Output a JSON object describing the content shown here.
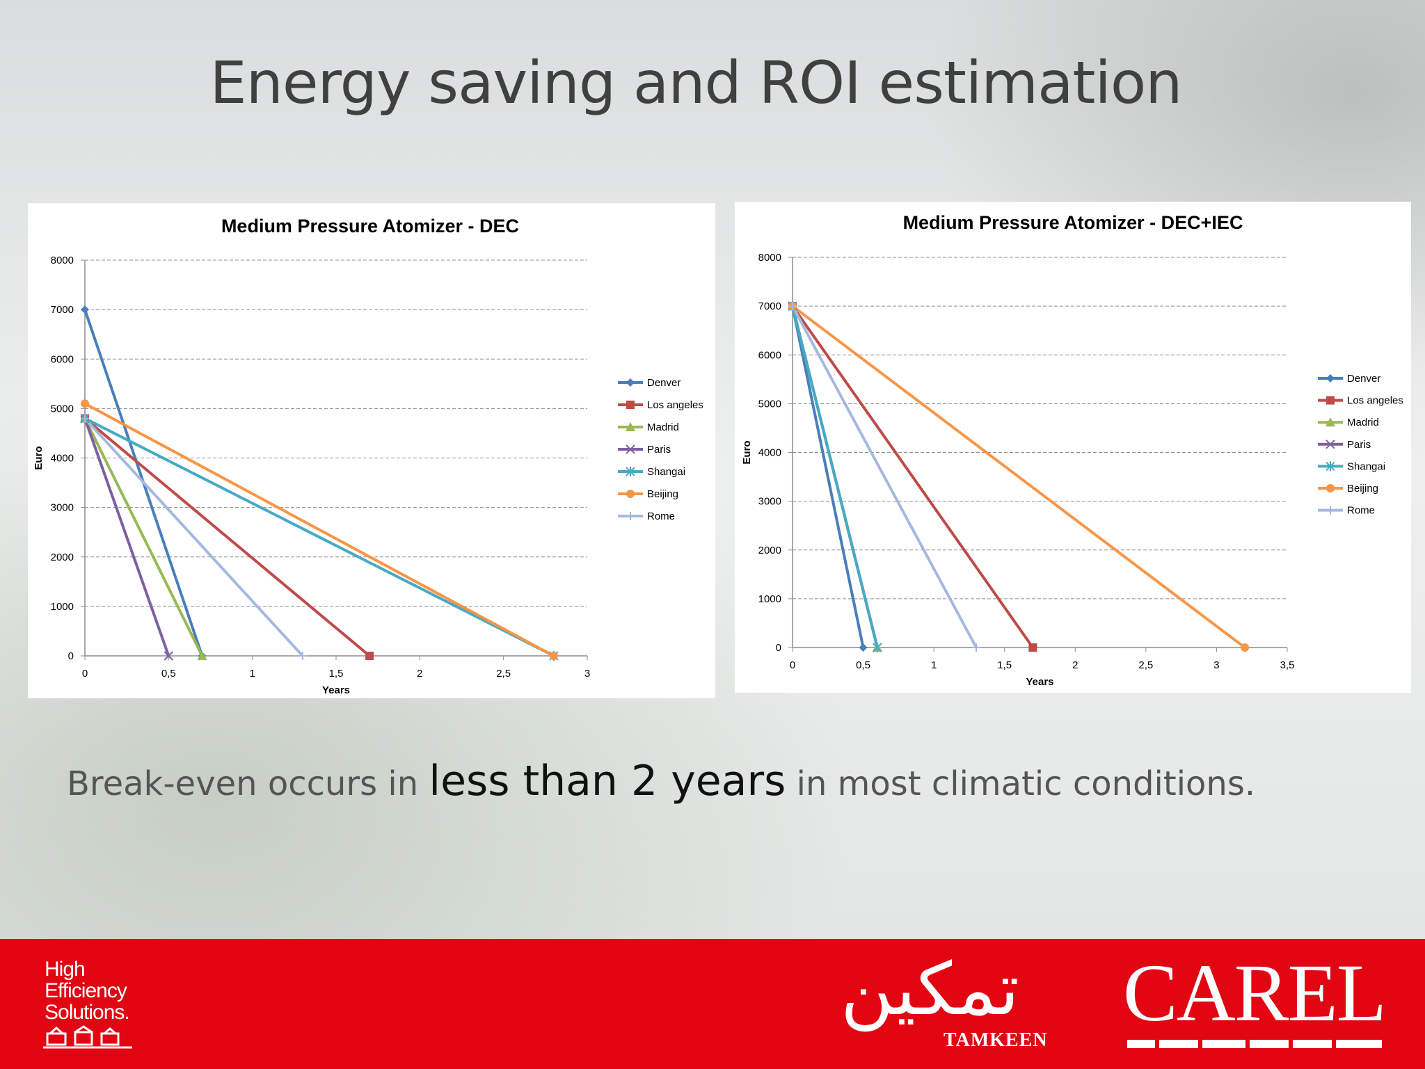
{
  "slide": {
    "title": "Energy saving and ROI estimation",
    "caption": {
      "before": "Break-even occurs in ",
      "emphasis": "less than 2 years",
      "after": " in most climatic conditions."
    }
  },
  "footer": {
    "tagline": [
      "High",
      "Efficiency",
      "Solutions."
    ],
    "tamkeen_arabic": "تمكين",
    "tamkeen_latin": "TAMKEEN",
    "brand": "CAREL",
    "background_color": "#e20613"
  },
  "chart_data": [
    {
      "type": "line",
      "title": "Medium Pressure Atomizer - DEC",
      "xlabel": "Years",
      "ylabel": "Euro",
      "xlim": [
        0,
        3
      ],
      "ylim": [
        0,
        8000
      ],
      "xticks": [
        0,
        0.5,
        1,
        1.5,
        2,
        2.5,
        3
      ],
      "xtick_labels": [
        "0",
        "0,5",
        "1",
        "1,5",
        "2",
        "2,5",
        "3"
      ],
      "yticks": [
        0,
        1000,
        2000,
        3000,
        4000,
        5000,
        6000,
        7000,
        8000
      ],
      "ytick_labels": [
        "0",
        "1000",
        "2000",
        "3000",
        "4000",
        "5000",
        "6000",
        "7000",
        "8000"
      ],
      "grid": "horizontal-dashed",
      "legend": "right",
      "series": [
        {
          "name": "Denver",
          "color": "#4a7ebb",
          "marker": "diamond",
          "points": [
            [
              0,
              7000
            ],
            [
              0.7,
              0
            ]
          ]
        },
        {
          "name": "Los angeles",
          "color": "#be4b48",
          "marker": "square",
          "points": [
            [
              0,
              4800
            ],
            [
              1.7,
              0
            ]
          ]
        },
        {
          "name": "Madrid",
          "color": "#98b954",
          "marker": "triangle",
          "points": [
            [
              0,
              4800
            ],
            [
              0.7,
              0
            ]
          ]
        },
        {
          "name": "Paris",
          "color": "#7d60a0",
          "marker": "x",
          "points": [
            [
              0,
              4800
            ],
            [
              0.5,
              0
            ]
          ]
        },
        {
          "name": "Shangai",
          "color": "#46aac5",
          "marker": "star",
          "points": [
            [
              0,
              4800
            ],
            [
              2.8,
              0
            ]
          ]
        },
        {
          "name": "Beijing",
          "color": "#f79646",
          "marker": "circle",
          "points": [
            [
              0,
              5100
            ],
            [
              2.8,
              0
            ]
          ]
        },
        {
          "name": "Rome",
          "color": "#a5b9e0",
          "marker": "plus",
          "points": [
            [
              0,
              4800
            ],
            [
              1.3,
              0
            ]
          ]
        }
      ]
    },
    {
      "type": "line",
      "title": "Medium Pressure Atomizer - DEC+IEC",
      "xlabel": "Years",
      "ylabel": "Euro",
      "xlim": [
        0,
        3.5
      ],
      "ylim": [
        0,
        8000
      ],
      "xticks": [
        0,
        0.5,
        1,
        1.5,
        2,
        2.5,
        3,
        3.5
      ],
      "xtick_labels": [
        "0",
        "0,5",
        "1",
        "1,5",
        "2",
        "2,5",
        "3",
        "3,5"
      ],
      "yticks": [
        0,
        1000,
        2000,
        3000,
        4000,
        5000,
        6000,
        7000,
        8000
      ],
      "ytick_labels": [
        "0",
        "1000",
        "2000",
        "3000",
        "4000",
        "5000",
        "6000",
        "7000",
        "8000"
      ],
      "grid": "horizontal-dashed",
      "legend": "right",
      "series": [
        {
          "name": "Denver",
          "color": "#4a7ebb",
          "marker": "diamond",
          "points": [
            [
              0,
              7000
            ],
            [
              0.5,
              0
            ]
          ]
        },
        {
          "name": "Los angeles",
          "color": "#be4b48",
          "marker": "square",
          "points": [
            [
              0,
              7000
            ],
            [
              1.7,
              0
            ]
          ]
        },
        {
          "name": "Madrid",
          "color": "#98b954",
          "marker": "triangle",
          "points": [
            [
              0,
              7000
            ],
            [
              0.6,
              0
            ]
          ]
        },
        {
          "name": "Paris",
          "color": "#7d60a0",
          "marker": "x",
          "points": [
            [
              0,
              7000
            ],
            [
              0.6,
              0
            ]
          ]
        },
        {
          "name": "Shangai",
          "color": "#46aac5",
          "marker": "star",
          "points": [
            [
              0,
              7000
            ],
            [
              0.6,
              0
            ]
          ]
        },
        {
          "name": "Beijing",
          "color": "#f79646",
          "marker": "circle",
          "points": [
            [
              0,
              7000
            ],
            [
              3.2,
              0
            ]
          ]
        },
        {
          "name": "Rome",
          "color": "#a5b9e0",
          "marker": "plus",
          "points": [
            [
              0,
              7000
            ],
            [
              1.3,
              0
            ]
          ]
        }
      ]
    }
  ]
}
